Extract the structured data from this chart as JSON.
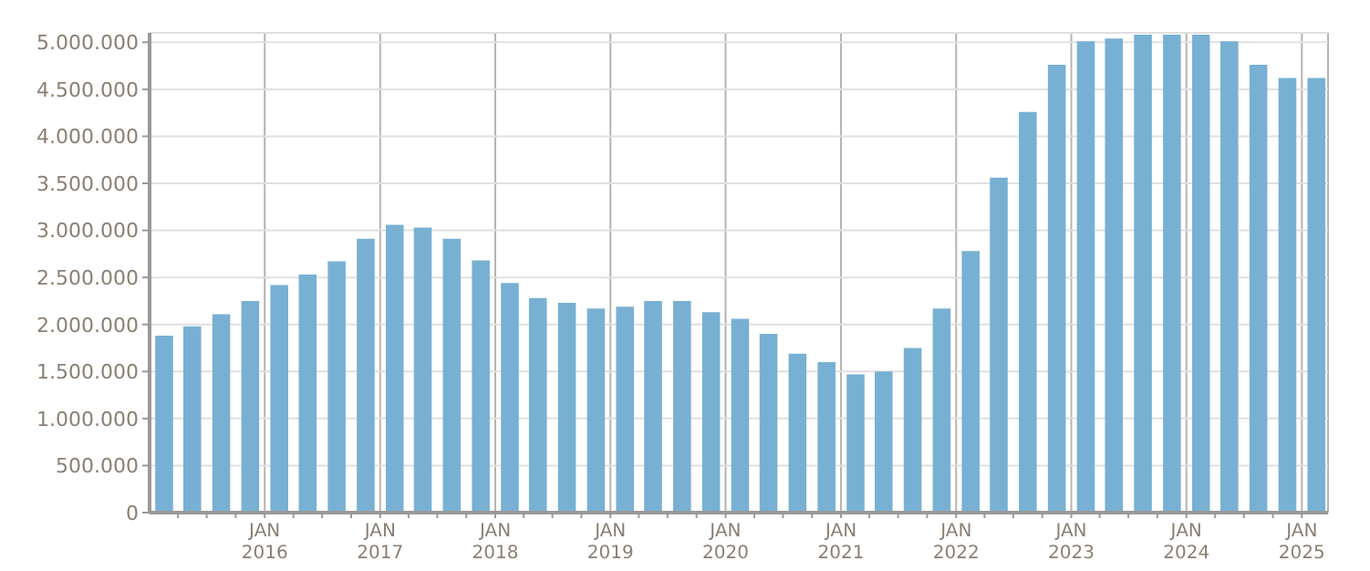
{
  "chart_data": {
    "type": "bar",
    "x": [
      "2015-02-15",
      "2015-05-15",
      "2015-08-15",
      "2015-11-15",
      "2016-02-15",
      "2016-05-15",
      "2016-08-15",
      "2016-11-15",
      "2017-02-15",
      "2017-05-15",
      "2017-08-15",
      "2017-11-15",
      "2018-02-15",
      "2018-05-15",
      "2018-08-15",
      "2018-11-15",
      "2019-02-15",
      "2019-05-15",
      "2019-08-15",
      "2019-11-15",
      "2020-02-15",
      "2020-05-15",
      "2020-08-15",
      "2020-11-15",
      "2021-02-15",
      "2021-05-15",
      "2021-08-15",
      "2021-11-15",
      "2022-02-15",
      "2022-05-15",
      "2022-08-15",
      "2022-11-15",
      "2023-02-15",
      "2023-05-15",
      "2023-08-15",
      "2023-11-15",
      "2024-02-15",
      "2024-05-15",
      "2024-08-15",
      "2024-11-15",
      "2025-02-15"
    ],
    "values": [
      1880000,
      1980000,
      2110000,
      2250000,
      2420000,
      2530000,
      2670000,
      2910000,
      3060000,
      3030000,
      2910000,
      2680000,
      2440000,
      2280000,
      2230000,
      2170000,
      2190000,
      2250000,
      2250000,
      2130000,
      2060000,
      1900000,
      1690000,
      1600000,
      1470000,
      1500000,
      1750000,
      2170000,
      2780000,
      3560000,
      4260000,
      4760000,
      5010000,
      5040000,
      5080000,
      5080000,
      5080000,
      5010000,
      4760000,
      4620000,
      4620000
    ],
    "color": "#78b0d3",
    "xlim": [
      "2015-01-01",
      "2025-03-25"
    ],
    "xticks": [
      {
        "value": "2015-04-01",
        "label": null
      },
      {
        "value": "2015-07-01",
        "label": null
      },
      {
        "value": "2015-10-01",
        "label": null
      },
      {
        "value": "2016-01-01",
        "label": "JAN 2016"
      },
      {
        "value": "2016-04-01",
        "label": null
      },
      {
        "value": "2016-07-01",
        "label": null
      },
      {
        "value": "2016-10-01",
        "label": null
      },
      {
        "value": "2017-01-01",
        "label": "JAN 2017"
      },
      {
        "value": "2017-04-01",
        "label": null
      },
      {
        "value": "2017-07-01",
        "label": null
      },
      {
        "value": "2017-10-01",
        "label": null
      },
      {
        "value": "2018-01-01",
        "label": "JAN 2018"
      },
      {
        "value": "2018-04-01",
        "label": null
      },
      {
        "value": "2018-07-01",
        "label": null
      },
      {
        "value": "2018-10-01",
        "label": null
      },
      {
        "value": "2019-01-01",
        "label": "JAN 2019"
      },
      {
        "value": "2019-04-01",
        "label": null
      },
      {
        "value": "2019-07-01",
        "label": null
      },
      {
        "value": "2019-10-01",
        "label": null
      },
      {
        "value": "2020-01-01",
        "label": "JAN 2020"
      },
      {
        "value": "2020-04-01",
        "label": null
      },
      {
        "value": "2020-07-01",
        "label": null
      },
      {
        "value": "2020-10-01",
        "label": null
      },
      {
        "value": "2021-01-01",
        "label": "JAN 2021"
      },
      {
        "value": "2021-04-01",
        "label": null
      },
      {
        "value": "2021-07-01",
        "label": null
      },
      {
        "value": "2021-10-01",
        "label": null
      },
      {
        "value": "2022-01-01",
        "label": "JAN 2022"
      },
      {
        "value": "2022-04-01",
        "label": null
      },
      {
        "value": "2022-07-01",
        "label": null
      },
      {
        "value": "2022-10-01",
        "label": null
      },
      {
        "value": "2023-01-01",
        "label": "JAN 2023"
      },
      {
        "value": "2023-04-01",
        "label": null
      },
      {
        "value": "2023-07-01",
        "label": null
      },
      {
        "value": "2023-10-01",
        "label": null
      },
      {
        "value": "2024-01-01",
        "label": "JAN 2024"
      },
      {
        "value": "2024-04-01",
        "label": null
      },
      {
        "value": "2024-07-01",
        "label": null
      },
      {
        "value": "2024-10-01",
        "label": null
      },
      {
        "value": "2025-01-01",
        "label": "JAN 2025"
      }
    ],
    "ylim": [
      0,
      5100000
    ],
    "yticks": [
      {
        "value": 0,
        "label": "0"
      },
      {
        "value": 500000,
        "label": "500.000"
      },
      {
        "value": 1000000,
        "label": "1.000.000"
      },
      {
        "value": 1500000,
        "label": "1.500.000"
      },
      {
        "value": 2000000,
        "label": "2.000.000"
      },
      {
        "value": 2500000,
        "label": "2.500.000"
      },
      {
        "value": 3000000,
        "label": "3.000.000"
      },
      {
        "value": 3500000,
        "label": "3.500.000"
      },
      {
        "value": 4000000,
        "label": "4.000.000"
      },
      {
        "value": 4500000,
        "label": "4.500.000"
      },
      {
        "value": 5000000,
        "label": "5.000.000"
      }
    ],
    "grid": true
  }
}
